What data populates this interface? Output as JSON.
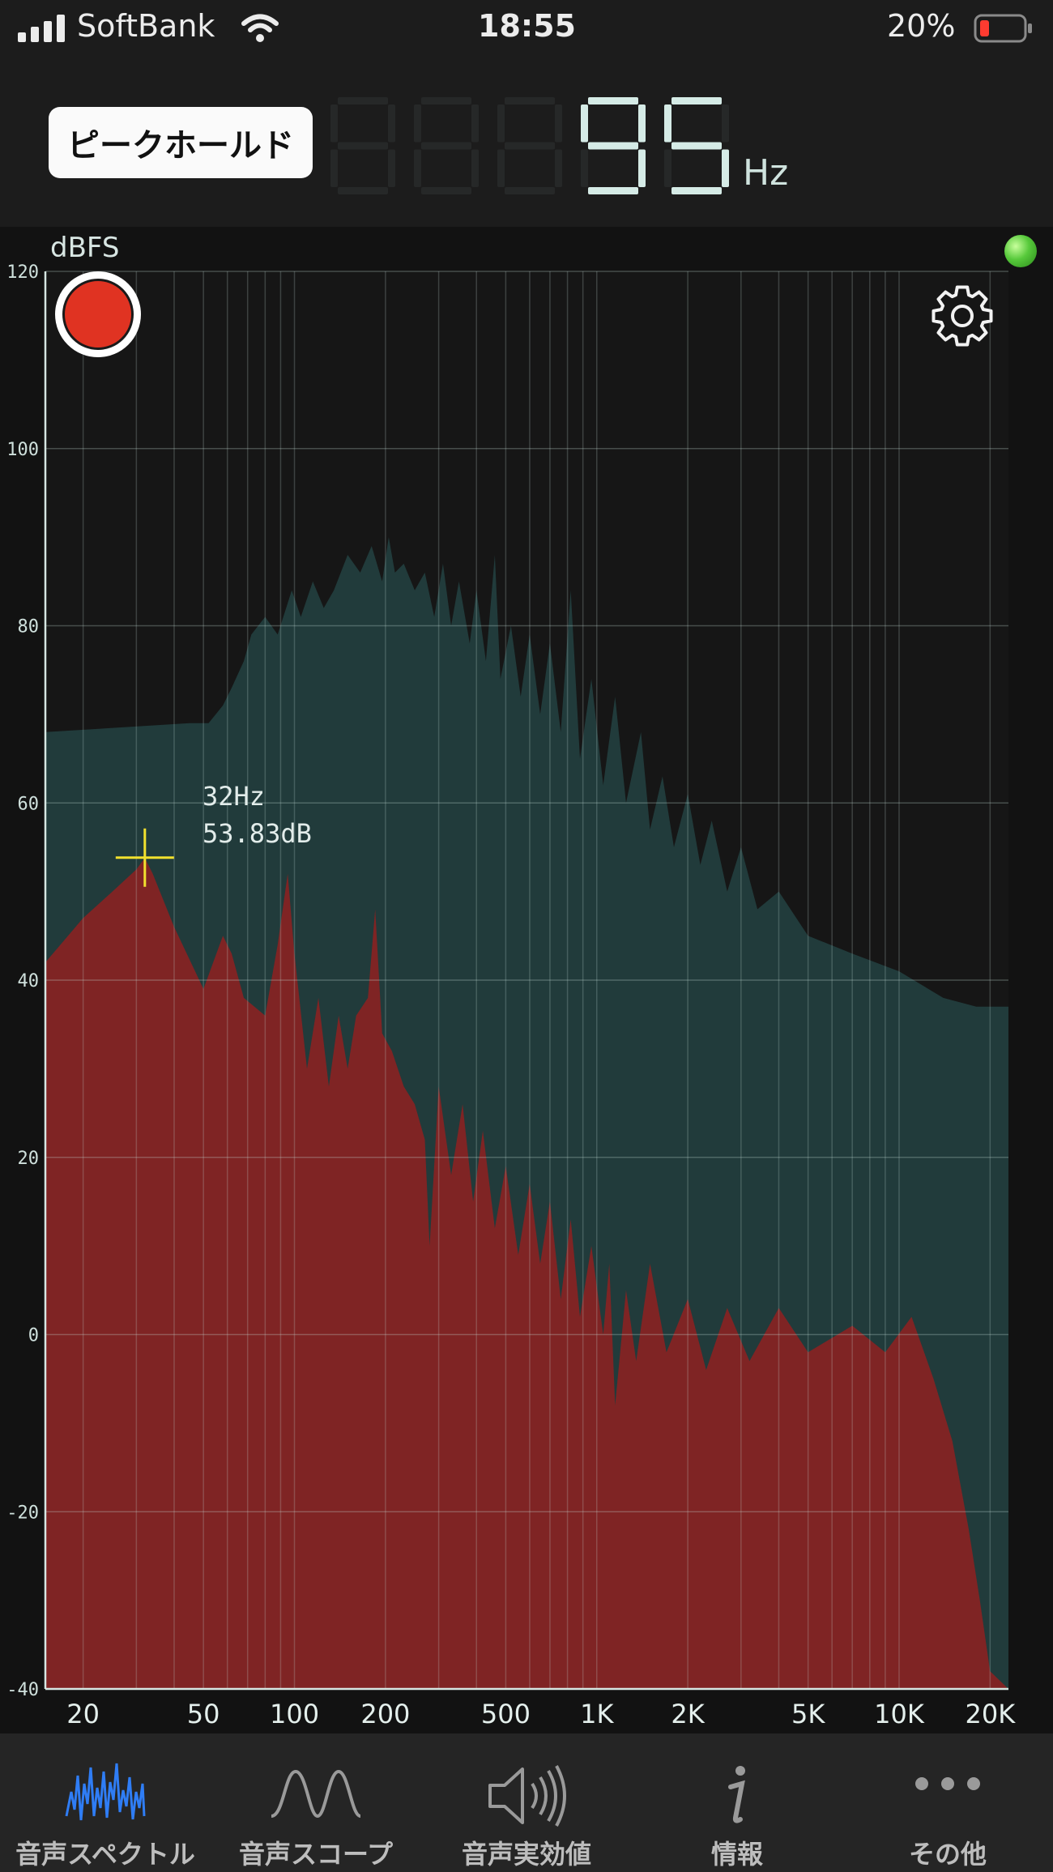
{
  "status_bar": {
    "carrier": "SoftBank",
    "time": "18:55",
    "battery": "20%"
  },
  "header": {
    "peak_hold_label": "ピークホールド",
    "frequency_digits": [
      "8",
      "8",
      "8",
      "9",
      "5"
    ],
    "frequency_active_from": 3,
    "frequency_unit": "Hz"
  },
  "plot": {
    "y_unit": "dBFS",
    "cursor": {
      "freq_label": "32Hz",
      "db_label": "53.83dB",
      "freq": 32,
      "db": 53.83
    }
  },
  "chart_data": {
    "type": "area",
    "x_scale": "log",
    "xlim": [
      15,
      23000
    ],
    "ylim": [
      -40,
      120
    ],
    "ylabel": "dBFS",
    "x_ticks": [
      {
        "value": 20,
        "label": "20"
      },
      {
        "value": 50,
        "label": "50"
      },
      {
        "value": 100,
        "label": "100"
      },
      {
        "value": 200,
        "label": "200"
      },
      {
        "value": 500,
        "label": "500"
      },
      {
        "value": 1000,
        "label": "1K"
      },
      {
        "value": 2000,
        "label": "2K"
      },
      {
        "value": 5000,
        "label": "5K"
      },
      {
        "value": 10000,
        "label": "10K"
      },
      {
        "value": 20000,
        "label": "20K"
      }
    ],
    "y_ticks": [
      120,
      100,
      80,
      60,
      40,
      20,
      0,
      -20,
      -40
    ],
    "grid": true,
    "series": [
      {
        "color": "#213b3b",
        "points": [
          [
            15,
            68
          ],
          [
            45,
            69
          ],
          [
            52,
            69
          ],
          [
            58,
            71
          ],
          [
            62,
            73
          ],
          [
            68,
            76
          ],
          [
            72,
            79
          ],
          [
            80,
            81
          ],
          [
            88,
            79
          ],
          [
            98,
            84
          ],
          [
            105,
            81
          ],
          [
            115,
            85
          ],
          [
            125,
            82
          ],
          [
            135,
            84
          ],
          [
            150,
            88
          ],
          [
            165,
            86
          ],
          [
            180,
            89
          ],
          [
            195,
            85
          ],
          [
            205,
            90
          ],
          [
            215,
            86
          ],
          [
            230,
            87
          ],
          [
            250,
            84
          ],
          [
            270,
            86
          ],
          [
            290,
            81
          ],
          [
            310,
            87
          ],
          [
            330,
            80
          ],
          [
            350,
            85
          ],
          [
            380,
            78
          ],
          [
            400,
            84
          ],
          [
            430,
            76
          ],
          [
            460,
            88
          ],
          [
            480,
            74
          ],
          [
            520,
            80
          ],
          [
            560,
            72
          ],
          [
            600,
            79
          ],
          [
            650,
            70
          ],
          [
            700,
            78
          ],
          [
            760,
            68
          ],
          [
            820,
            84
          ],
          [
            880,
            65
          ],
          [
            960,
            74
          ],
          [
            1050,
            62
          ],
          [
            1150,
            72
          ],
          [
            1250,
            60
          ],
          [
            1400,
            68
          ],
          [
            1500,
            57
          ],
          [
            1650,
            63
          ],
          [
            1800,
            55
          ],
          [
            2000,
            61
          ],
          [
            2200,
            53
          ],
          [
            2400,
            58
          ],
          [
            2700,
            50
          ],
          [
            3000,
            55
          ],
          [
            3400,
            48
          ],
          [
            4000,
            50
          ],
          [
            5000,
            45
          ],
          [
            7000,
            43
          ],
          [
            10000,
            41
          ],
          [
            14000,
            38
          ],
          [
            18000,
            37
          ],
          [
            23000,
            37
          ]
        ]
      },
      {
        "color": "#7f2424",
        "points": [
          [
            15,
            42
          ],
          [
            20,
            47
          ],
          [
            25,
            50
          ],
          [
            30,
            52.5
          ],
          [
            32,
            53.8
          ],
          [
            34,
            52
          ],
          [
            40,
            46
          ],
          [
            50,
            39
          ],
          [
            58,
            45
          ],
          [
            62,
            43
          ],
          [
            68,
            38
          ],
          [
            80,
            36
          ],
          [
            88,
            44
          ],
          [
            95,
            52
          ],
          [
            100,
            43
          ],
          [
            110,
            30
          ],
          [
            120,
            38
          ],
          [
            130,
            28
          ],
          [
            140,
            36
          ],
          [
            150,
            30
          ],
          [
            160,
            36
          ],
          [
            175,
            38
          ],
          [
            185,
            48
          ],
          [
            195,
            34
          ],
          [
            210,
            32
          ],
          [
            230,
            28
          ],
          [
            250,
            26
          ],
          [
            270,
            22
          ],
          [
            280,
            10
          ],
          [
            300,
            28
          ],
          [
            330,
            18
          ],
          [
            360,
            26
          ],
          [
            390,
            15
          ],
          [
            420,
            23
          ],
          [
            460,
            12
          ],
          [
            500,
            19
          ],
          [
            550,
            9
          ],
          [
            600,
            17
          ],
          [
            650,
            8
          ],
          [
            700,
            15
          ],
          [
            760,
            4
          ],
          [
            820,
            13
          ],
          [
            880,
            2
          ],
          [
            960,
            10
          ],
          [
            1050,
            0
          ],
          [
            1100,
            8
          ],
          [
            1150,
            -8
          ],
          [
            1250,
            5
          ],
          [
            1350,
            -3
          ],
          [
            1500,
            8
          ],
          [
            1700,
            -2
          ],
          [
            2000,
            4
          ],
          [
            2300,
            -4
          ],
          [
            2700,
            3
          ],
          [
            3200,
            -3
          ],
          [
            4000,
            3
          ],
          [
            5000,
            -2
          ],
          [
            7000,
            1
          ],
          [
            9000,
            -2
          ],
          [
            11000,
            2
          ],
          [
            13000,
            -5
          ],
          [
            15000,
            -12
          ],
          [
            17000,
            -22
          ],
          [
            18500,
            -30
          ],
          [
            20000,
            -38
          ],
          [
            23000,
            -40
          ]
        ]
      }
    ]
  },
  "tabs": [
    {
      "label": "音声スペクトル",
      "icon": "spectrum-icon",
      "active": true
    },
    {
      "label": "音声スコープ",
      "icon": "scope-wave-icon",
      "active": false
    },
    {
      "label": "音声実効値",
      "icon": "speaker-icon",
      "active": false
    },
    {
      "label": "情報",
      "icon": "info-icon",
      "active": false
    },
    {
      "label": "その他",
      "icon": "more-icon",
      "active": false
    }
  ]
}
